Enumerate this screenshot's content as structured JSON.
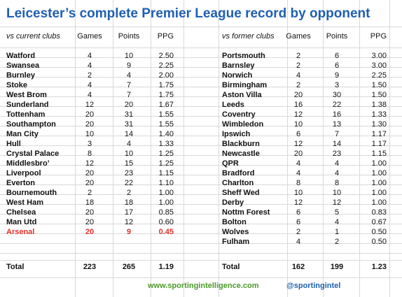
{
  "title": "Leicester’s complete Premier League record by opponent",
  "current": {
    "header": "vs current clubs",
    "columns": [
      "Games",
      "Points",
      "PPG"
    ],
    "rows": [
      {
        "club": "Watford",
        "games": "4",
        "points": "10",
        "ppg": "2.50"
      },
      {
        "club": "Swansea",
        "games": "4",
        "points": "9",
        "ppg": "2.25"
      },
      {
        "club": "Burnley",
        "games": "2",
        "points": "4",
        "ppg": "2.00"
      },
      {
        "club": "Stoke",
        "games": "4",
        "points": "7",
        "ppg": "1.75"
      },
      {
        "club": "West Brom",
        "games": "4",
        "points": "7",
        "ppg": "1.75"
      },
      {
        "club": "Sunderland",
        "games": "12",
        "points": "20",
        "ppg": "1.67"
      },
      {
        "club": "Tottenham",
        "games": "20",
        "points": "31",
        "ppg": "1.55"
      },
      {
        "club": "Southampton",
        "games": "20",
        "points": "31",
        "ppg": "1.55"
      },
      {
        "club": "Man City",
        "games": "10",
        "points": "14",
        "ppg": "1.40"
      },
      {
        "club": "Hull",
        "games": "3",
        "points": "4",
        "ppg": "1.33"
      },
      {
        "club": "Crystal Palace",
        "games": "8",
        "points": "10",
        "ppg": "1.25"
      },
      {
        "club": "Middlesbro’",
        "games": "12",
        "points": "15",
        "ppg": "1.25"
      },
      {
        "club": "Liverpool",
        "games": "20",
        "points": "23",
        "ppg": "1.15"
      },
      {
        "club": "Everton",
        "games": "20",
        "points": "22",
        "ppg": "1.10"
      },
      {
        "club": "Bournemouth",
        "games": "2",
        "points": "2",
        "ppg": "1.00"
      },
      {
        "club": "West Ham",
        "games": "18",
        "points": "18",
        "ppg": "1.00"
      },
      {
        "club": "Chelsea",
        "games": "20",
        "points": "17",
        "ppg": "0.85"
      },
      {
        "club": "Man Utd",
        "games": "20",
        "points": "12",
        "ppg": "0.60"
      },
      {
        "club": "Arsenal",
        "games": "20",
        "points": "9",
        "ppg": "0.45"
      }
    ],
    "total": {
      "label": "Total",
      "games": "223",
      "points": "265",
      "ppg": "1.19"
    }
  },
  "former": {
    "header": "vs former clubs",
    "columns": [
      "Games",
      "Points",
      "PPG"
    ],
    "rows": [
      {
        "club": "Portsmouth",
        "games": "2",
        "points": "6",
        "ppg": "3.00"
      },
      {
        "club": "Barnsley",
        "games": "2",
        "points": "6",
        "ppg": "3.00"
      },
      {
        "club": "Norwich",
        "games": "4",
        "points": "9",
        "ppg": "2.25"
      },
      {
        "club": "Birmingham",
        "games": "2",
        "points": "3",
        "ppg": "1.50"
      },
      {
        "club": "Aston Villa",
        "games": "20",
        "points": "30",
        "ppg": "1.50"
      },
      {
        "club": "Leeds",
        "games": "16",
        "points": "22",
        "ppg": "1.38"
      },
      {
        "club": "Coventry",
        "games": "12",
        "points": "16",
        "ppg": "1.33"
      },
      {
        "club": "Wimbledon",
        "games": "10",
        "points": "13",
        "ppg": "1.30"
      },
      {
        "club": "Ipswich",
        "games": "6",
        "points": "7",
        "ppg": "1.17"
      },
      {
        "club": "Blackburn",
        "games": "12",
        "points": "14",
        "ppg": "1.17"
      },
      {
        "club": "Newcastle",
        "games": "20",
        "points": "23",
        "ppg": "1.15"
      },
      {
        "club": "QPR",
        "games": "4",
        "points": "4",
        "ppg": "1.00"
      },
      {
        "club": "Bradford",
        "games": "4",
        "points": "4",
        "ppg": "1.00"
      },
      {
        "club": "Charlton",
        "games": "8",
        "points": "8",
        "ppg": "1.00"
      },
      {
        "club": "Sheff Wed",
        "games": "10",
        "points": "10",
        "ppg": "1.00"
      },
      {
        "club": "Derby",
        "games": "12",
        "points": "12",
        "ppg": "1.00"
      },
      {
        "club": "Nottm Forest",
        "games": "6",
        "points": "5",
        "ppg": "0.83"
      },
      {
        "club": "Bolton",
        "games": "6",
        "points": "4",
        "ppg": "0.67"
      },
      {
        "club": "Wolves",
        "games": "2",
        "points": "1",
        "ppg": "0.50"
      },
      {
        "club": "Fulham",
        "games": "4",
        "points": "2",
        "ppg": "0.50"
      }
    ],
    "total": {
      "label": "Total",
      "games": "162",
      "points": "199",
      "ppg": "1.23"
    }
  },
  "footer": {
    "website": "www.sportingintelligence.com",
    "handle": "@sportingintel"
  },
  "colors": {
    "title": "#1f5fb4",
    "highlight": "#e0302a",
    "footer_green": "#4c9a2a",
    "footer_blue": "#1f5fb4",
    "grid": "#d9d9d9"
  }
}
